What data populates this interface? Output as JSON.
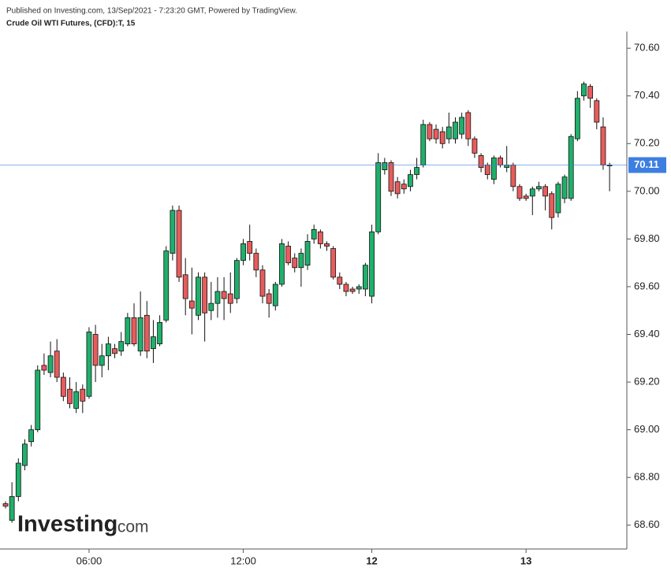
{
  "chart_data": {
    "type": "candlestick",
    "published": "Published on Investing.com, 13/Sep/2021 - 7:23:20 GMT, Powered by TradingView.",
    "title": "Crude Oil WTI Futures, (CFD):T, 15",
    "watermark": "Investing",
    "watermark_suffix": ".com",
    "up_color": "#1fb06b",
    "down_color": "#e85c5c",
    "last_price": 70.11,
    "last_price_color": "#3d7fe0",
    "categories": [
      null,
      null,
      null,
      null,
      null,
      null,
      null,
      null,
      null,
      null,
      null,
      null,
      null,
      "06:00",
      null,
      null,
      null,
      null,
      null,
      null,
      null,
      null,
      null,
      null,
      null,
      null,
      null,
      null,
      null,
      null,
      null,
      null,
      null,
      null,
      null,
      null,
      null,
      "12:00",
      null,
      null,
      null,
      null,
      null,
      null,
      null,
      null,
      null,
      null,
      null,
      null,
      null,
      null,
      null,
      null,
      null,
      null,
      null,
      "12",
      null,
      null,
      null,
      null,
      null,
      null,
      null,
      null,
      null,
      null,
      null,
      null,
      null,
      null,
      null,
      null,
      null,
      null,
      null,
      null,
      null,
      null,
      null,
      "13",
      null,
      null,
      null,
      null,
      null,
      null,
      null,
      null,
      null,
      null,
      null,
      null,
      null
    ],
    "open": [
      68.69,
      68.62,
      68.72,
      68.85,
      68.95,
      69.0,
      69.27,
      69.24,
      69.33,
      69.22,
      69.17,
      69.09,
      69.17,
      69.14,
      69.4,
      69.27,
      69.31,
      69.34,
      69.33,
      69.36,
      69.47,
      69.33,
      69.48,
      69.34,
      69.36,
      69.46,
      69.74,
      69.92,
      69.65,
      69.54,
      69.48,
      69.64,
      69.5,
      69.53,
      69.58,
      69.57,
      69.55,
      69.71,
      69.79,
      69.74,
      69.67,
      69.57,
      69.52,
      69.61,
      69.77,
      69.72,
      69.68,
      69.69,
      69.8,
      69.83,
      69.78,
      69.76,
      69.64,
      69.61,
      69.59,
      69.59,
      69.59,
      69.56,
      69.83,
      70.09,
      70.12,
      70.04,
      70.03,
      70.02,
      70.07,
      70.11,
      70.28,
      70.26,
      70.25,
      70.22,
      70.22,
      70.24,
      70.33,
      70.22,
      70.15,
      70.11,
      70.05,
      70.14,
      70.1,
      70.11,
      70.02,
      69.98,
      69.98,
      70.01,
      70.02,
      69.99,
      69.91,
      69.97,
      69.97,
      70.22,
      70.4,
      70.44,
      70.38,
      70.27,
      70.11
    ],
    "high": [
      68.7,
      68.78,
      68.88,
      68.96,
      69.02,
      69.27,
      69.32,
      69.37,
      69.38,
      69.24,
      69.22,
      69.2,
      69.19,
      69.43,
      69.44,
      69.36,
      69.39,
      69.36,
      69.41,
      69.49,
      69.53,
      69.58,
      69.54,
      69.46,
      69.48,
      69.77,
      69.94,
      69.94,
      69.72,
      69.68,
      69.66,
      69.66,
      69.62,
      69.64,
      69.64,
      69.66,
      69.72,
      69.8,
      69.86,
      69.76,
      69.69,
      69.59,
      69.62,
      69.8,
      69.79,
      69.74,
      69.76,
      69.82,
      69.86,
      69.84,
      69.79,
      69.77,
      69.66,
      69.62,
      69.6,
      69.61,
      69.7,
      69.86,
      70.16,
      70.14,
      70.13,
      70.06,
      70.05,
      70.09,
      70.14,
      70.3,
      70.29,
      70.28,
      70.27,
      70.33,
      70.31,
      70.33,
      70.34,
      70.23,
      70.16,
      70.12,
      70.15,
      70.15,
      70.19,
      70.12,
      70.03,
      69.99,
      70.02,
      70.04,
      70.03,
      70.0,
      70.04,
      70.07,
      70.24,
      70.42,
      70.46,
      70.45,
      70.39,
      70.31,
      70.12
    ],
    "low": [
      68.67,
      68.61,
      68.7,
      68.83,
      68.93,
      68.99,
      69.23,
      69.22,
      69.2,
      69.12,
      69.09,
      69.07,
      69.07,
      69.13,
      69.2,
      69.22,
      69.25,
      69.3,
      69.31,
      69.35,
      69.35,
      69.31,
      69.3,
      69.28,
      69.35,
      69.45,
      69.71,
      69.62,
      69.48,
      69.4,
      69.46,
      69.37,
      69.46,
      69.47,
      69.46,
      69.49,
      69.53,
      69.69,
      69.71,
      69.64,
      69.53,
      69.47,
      69.5,
      69.6,
      69.69,
      69.66,
      69.6,
      69.67,
      69.78,
      69.76,
      69.75,
      69.63,
      69.59,
      69.56,
      69.57,
      69.57,
      69.56,
      69.53,
      69.82,
      70.07,
      69.98,
      69.97,
      69.99,
      70.0,
      70.05,
      70.1,
      70.21,
      70.2,
      70.18,
      70.2,
      70.2,
      70.22,
      70.19,
      70.14,
      70.08,
      70.05,
      70.03,
      70.1,
      70.08,
      70.0,
      69.96,
      69.96,
      69.9,
      70.0,
      69.92,
      69.84,
      69.89,
      69.95,
      69.96,
      70.21,
      70.38,
      70.35,
      70.26,
      70.09,
      70.0
    ],
    "close": [
      68.68,
      68.72,
      68.86,
      68.94,
      69.0,
      69.25,
      69.25,
      69.31,
      69.22,
      69.14,
      69.11,
      69.16,
      69.12,
      69.41,
      69.27,
      69.31,
      69.36,
      69.32,
      69.37,
      69.47,
      69.36,
      69.47,
      69.33,
      69.39,
      69.45,
      69.75,
      69.92,
      69.64,
      69.55,
      69.51,
      69.64,
      69.49,
      69.53,
      69.58,
      69.55,
      69.53,
      69.71,
      69.78,
      69.74,
      69.67,
      69.56,
      69.53,
      69.61,
      69.78,
      69.7,
      69.68,
      69.74,
      69.79,
      69.84,
      69.78,
      69.77,
      69.64,
      69.61,
      69.58,
      69.58,
      69.6,
      69.69,
      69.83,
      70.12,
      70.12,
      70.0,
      69.99,
      70.01,
      70.07,
      70.1,
      70.28,
      70.22,
      70.22,
      70.2,
      70.27,
      70.29,
      70.31,
      70.22,
      70.16,
      70.1,
      70.07,
      70.14,
      70.11,
      70.11,
      70.02,
      69.97,
      69.97,
      70.01,
      70.02,
      69.98,
      69.89,
      70.03,
      70.06,
      70.23,
      70.39,
      70.45,
      70.39,
      70.29,
      70.11,
      70.11
    ],
    "ylim": [
      68.5,
      70.67
    ],
    "yticks": [
      {
        "value": 68.6,
        "label": "68.60"
      },
      {
        "value": 68.8,
        "label": "68.80"
      },
      {
        "value": 69.0,
        "label": "69.00"
      },
      {
        "value": 69.2,
        "label": "69.20"
      },
      {
        "value": 69.4,
        "label": "69.40"
      },
      {
        "value": 69.6,
        "label": "69.60"
      },
      {
        "value": 69.8,
        "label": "69.80"
      },
      {
        "value": 70.0,
        "label": "70.00"
      },
      {
        "value": 70.2,
        "label": "70.20"
      },
      {
        "value": 70.4,
        "label": "70.40"
      },
      {
        "value": 70.6,
        "label": "70.60"
      }
    ]
  }
}
